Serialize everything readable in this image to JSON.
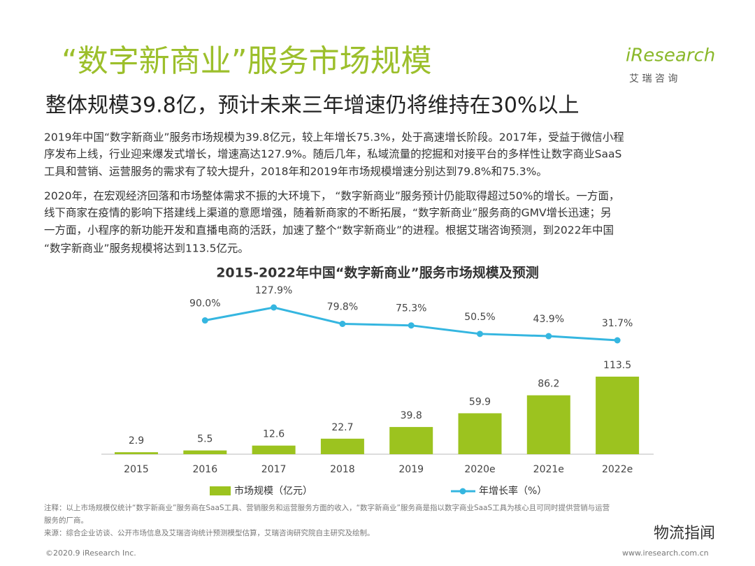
{
  "title": "“数字新商业”服务市场规模",
  "subtitle": "整体规模39.8亿，预计未来三年增速仍将维持在30%以上",
  "logo": {
    "brand": "iResearch",
    "name": "艾 瑞 咨 询"
  },
  "body": [
    "2019年中国“数字新商业”服务市场规模为39.8亿元，较上年增长75.3%，处于高速增长阶段。2017年，受益于微信小程",
    "序发布上线，行业迎来爆发式增长，增速高达127.9%。随后几年，私域流量的挖掘和对接平台的多样性让数字商业SaaS",
    "工具和营销、运营服务的需求有了较大提升，2018年和2019年市场规模增速分别达到79.8%和75.3%。",
    "2020年，在宏观经济回落和市场整体需求不振的大环境下，  “数字新商业”服务预计仍能取得超过50%的增长。一方面，",
    "线下商家在疫情的影响下搭建线上渠道的意愿增强，随着新商家的不断拓展，“数字新商业”服务商的GMV增长迅速；另",
    "一方面，小程序的新功能开发和直播电商的活跃，加速了整个“数字新商业”的进程。根据艾瑞咨询预测，到2022年中国",
    "“数字新商业”服务规模将达到113.5亿元。"
  ],
  "chart_data": {
    "type": "bar",
    "title": "2015-2022年中国“数字新商业”服务市场规模及预测",
    "categories": [
      "2015",
      "2016",
      "2017",
      "2018",
      "2019",
      "2020e",
      "2021e",
      "2022e"
    ],
    "series": [
      {
        "name": "市场规模（亿元）",
        "color": "#9cc31f",
        "values": [
          2.9,
          5.5,
          12.6,
          22.7,
          39.8,
          59.9,
          86.2,
          113.5
        ]
      },
      {
        "name": "年增长率（%）",
        "color": "#35b6e0",
        "axis": "y2",
        "type": "line",
        "values": [
          null,
          90.0,
          127.9,
          79.8,
          75.3,
          50.5,
          43.9,
          31.7
        ],
        "value_labels": [
          null,
          "90.0%",
          "127.9%",
          "79.8%",
          "75.3%",
          "50.5%",
          "43.9%",
          "31.7%"
        ]
      }
    ]
  },
  "notes": [
    "注释：以上市场规模仅统计“数字新商业”服务商在SaaS工具、营销服务和运营服务方面的收入，“数字新商业”服务商是指以数字商业SaaS工具为核心且可同时提供营销与运营",
    "服务的厂商。",
    "来源：综合企业访谈、公开市场信息及艾瑞咨询统计预测模型估算，艾瑞咨询研究院自主研究及绘制。"
  ],
  "footer": {
    "copyright": "©2020.9 iResearch Inc.",
    "url": "www.iresearch.com.cn",
    "watermark": "物流指闻"
  }
}
